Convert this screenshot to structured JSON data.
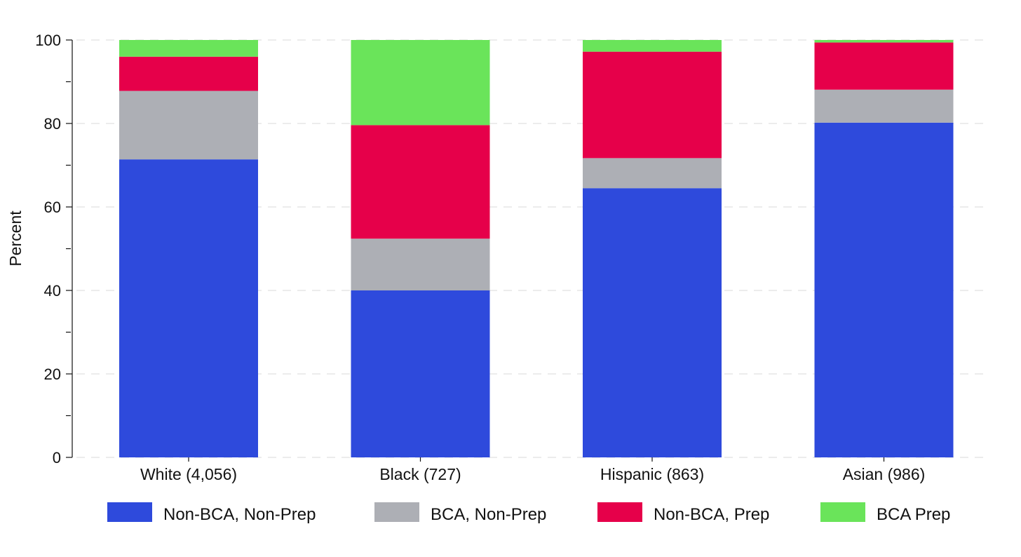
{
  "chart_data": {
    "type": "bar",
    "stacked": true,
    "ylabel": "Percent",
    "ylim": [
      0,
      100
    ],
    "yticks": [
      0,
      20,
      40,
      60,
      80,
      100
    ],
    "grid": true,
    "legend_position": "bottom",
    "categories": [
      "White (4,056)",
      "Black (727)",
      "Hispanic (863)",
      "Asian (986)"
    ],
    "series": [
      {
        "name": "Non-BCA, Non-Prep",
        "color": "#2E4ADC",
        "values": [
          71.4,
          40.0,
          64.5,
          80.2
        ]
      },
      {
        "name": "BCA, Non-Prep",
        "color": "#ADAFB5",
        "values": [
          16.4,
          12.4,
          7.2,
          7.9
        ]
      },
      {
        "name": "Non-BCA, Prep",
        "color": "#E6004A",
        "values": [
          8.2,
          27.2,
          25.5,
          11.3
        ]
      },
      {
        "name": "BCA Prep",
        "color": "#6AE45A",
        "values": [
          4.0,
          20.4,
          2.8,
          0.6
        ]
      }
    ]
  }
}
